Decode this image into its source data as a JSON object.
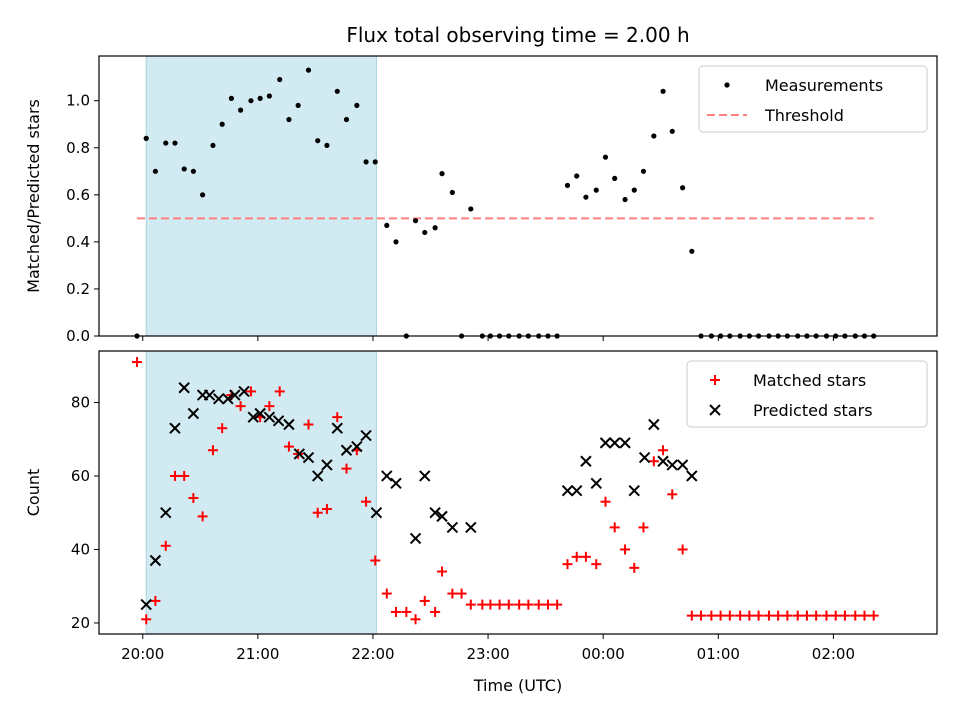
{
  "chart_data": {
    "title": "Flux total observing time = 2.00 h",
    "xlabel": "Time (UTC)",
    "x_unit": "hours after 20:00 UTC",
    "xlim": [
      -0.38,
      6.9
    ],
    "x_ticks": [
      {
        "value": 0,
        "label": "20:00"
      },
      {
        "value": 1,
        "label": "21:00"
      },
      {
        "value": 2,
        "label": "22:00"
      },
      {
        "value": 3,
        "label": "23:00"
      },
      {
        "value": 4,
        "label": "00:00"
      },
      {
        "value": 5,
        "label": "01:00"
      },
      {
        "value": 6,
        "label": "02:00"
      }
    ],
    "shaded_span": [
      0.03,
      2.03
    ],
    "shade_color": "#add8e6",
    "panels": [
      {
        "type": "scatter",
        "ylabel": "Matched/Predicted stars",
        "ylim": [
          0,
          1.19
        ],
        "y_ticks": [
          0,
          0.2,
          0.4,
          0.6,
          0.8,
          1.0
        ],
        "y_tick_labels": [
          "0.0",
          "0.2",
          "0.4",
          "0.6",
          "0.8",
          "1.0"
        ],
        "legend": {
          "placement": "top-right",
          "entries": [
            {
              "label": "Measurements",
              "marker": "dot",
              "color": "#000000"
            },
            {
              "label": "Threshold",
              "marker": "dashed-line",
              "color": "#ff8080"
            }
          ]
        },
        "threshold": {
          "y": 0.5,
          "x": [
            -0.05,
            6.35
          ],
          "color": "#ff8080"
        },
        "series": [
          {
            "name": "Measurements",
            "marker": "dot",
            "color": "#000000",
            "x": [
              -0.05,
              0.03,
              0.11,
              0.2,
              0.28,
              0.36,
              0.44,
              0.52,
              0.61,
              0.69,
              0.77,
              0.85,
              0.94,
              1.02,
              1.1,
              1.19,
              1.27,
              1.35,
              1.44,
              1.52,
              1.6,
              1.69,
              1.77,
              1.86,
              1.94,
              2.02,
              2.12,
              2.2,
              2.29,
              2.37,
              2.45,
              2.54,
              2.6,
              2.69,
              2.77,
              2.85,
              2.95,
              3.02,
              3.1,
              3.18,
              3.27,
              3.35,
              3.44,
              3.52,
              3.6,
              3.69,
              3.77,
              3.85,
              3.94,
              4.02,
              4.1,
              4.19,
              4.27,
              4.35,
              4.44,
              4.52,
              4.6,
              4.69,
              4.77,
              4.85,
              4.94,
              5.02,
              5.1,
              5.19,
              5.27,
              5.35,
              5.44,
              5.52,
              5.6,
              5.69,
              5.77,
              5.85,
              5.94,
              6.02,
              6.1,
              6.19,
              6.27,
              6.35
            ],
            "y": [
              0.0,
              0.84,
              0.7,
              0.82,
              0.82,
              0.71,
              0.7,
              0.6,
              0.81,
              0.9,
              1.01,
              0.96,
              1.0,
              1.01,
              1.02,
              1.09,
              0.92,
              0.98,
              1.13,
              0.83,
              0.81,
              1.04,
              0.92,
              0.98,
              0.74,
              0.74,
              0.47,
              0.4,
              0.0,
              0.49,
              0.44,
              0.46,
              0.69,
              0.61,
              0.0,
              0.54,
              0.0,
              0.0,
              0.0,
              0.0,
              0.0,
              0.0,
              0.0,
              0.0,
              0.0,
              0.64,
              0.68,
              0.59,
              0.62,
              0.76,
              0.67,
              0.58,
              0.62,
              0.7,
              0.85,
              1.04,
              0.87,
              0.63,
              0.36,
              0.0,
              0.0,
              0.0,
              0.0,
              0.0,
              0.0,
              0.0,
              0.0,
              0.0,
              0.0,
              0.0,
              0.0,
              0.0,
              0.0,
              0.0,
              0.0,
              0.0,
              0.0,
              0.0
            ]
          }
        ]
      },
      {
        "type": "scatter",
        "ylabel": "Count",
        "ylim": [
          17,
          94
        ],
        "y_ticks": [
          20,
          40,
          60,
          80
        ],
        "y_tick_labels": [
          "20",
          "40",
          "60",
          "80"
        ],
        "legend": {
          "placement": "top-right",
          "entries": [
            {
              "label": "Matched stars",
              "marker": "plus",
              "color": "#ff0000"
            },
            {
              "label": "Predicted stars",
              "marker": "x",
              "color": "#000000"
            }
          ]
        },
        "series": [
          {
            "name": "Matched stars",
            "marker": "plus",
            "color": "#ff0000",
            "x": [
              -0.05,
              0.03,
              0.11,
              0.2,
              0.28,
              0.36,
              0.44,
              0.52,
              0.61,
              0.69,
              0.77,
              0.85,
              0.94,
              1.02,
              1.1,
              1.19,
              1.27,
              1.35,
              1.44,
              1.52,
              1.6,
              1.69,
              1.77,
              1.86,
              1.94,
              2.02,
              2.12,
              2.2,
              2.29,
              2.37,
              2.45,
              2.54,
              2.6,
              2.69,
              2.77,
              2.85,
              2.95,
              3.02,
              3.1,
              3.18,
              3.27,
              3.35,
              3.44,
              3.52,
              3.6,
              3.69,
              3.77,
              3.85,
              3.94,
              4.02,
              4.1,
              4.19,
              4.27,
              4.35,
              4.44,
              4.52,
              4.6,
              4.69,
              4.77,
              4.85,
              4.94,
              5.02,
              5.1,
              5.19,
              5.27,
              5.35,
              5.44,
              5.52,
              5.6,
              5.69,
              5.77,
              5.85,
              5.94,
              6.02,
              6.1,
              6.19,
              6.27,
              6.35
            ],
            "y": [
              91,
              21,
              26,
              41,
              60,
              60,
              54,
              49,
              67,
              73,
              82,
              79,
              83,
              76,
              79,
              83,
              68,
              66,
              74,
              50,
              51,
              76,
              62,
              67,
              53,
              37,
              28,
              23,
              23,
              21,
              26,
              23,
              34,
              28,
              28,
              25,
              25,
              25,
              25,
              25,
              25,
              25,
              25,
              25,
              25,
              36,
              38,
              38,
              36,
              53,
              46,
              40,
              35,
              46,
              64,
              67,
              55,
              40,
              22,
              22,
              22,
              22,
              22,
              22,
              22,
              22,
              22,
              22,
              22,
              22,
              22,
              22,
              22,
              22,
              22,
              22,
              22,
              22
            ]
          },
          {
            "name": "Predicted stars",
            "marker": "x",
            "color": "#000000",
            "x": [
              0.03,
              0.11,
              0.2,
              0.28,
              0.36,
              0.44,
              0.52,
              0.58,
              0.66,
              0.74,
              0.8,
              0.88,
              0.96,
              1.02,
              1.1,
              1.18,
              1.27,
              1.36,
              1.44,
              1.52,
              1.6,
              1.69,
              1.77,
              1.86,
              1.94,
              2.03,
              2.12,
              2.2,
              2.37,
              2.45,
              2.54,
              2.6,
              2.69,
              2.85,
              3.69,
              3.77,
              3.85,
              3.94,
              4.02,
              4.1,
              4.19,
              4.27,
              4.36,
              4.44,
              4.52,
              4.6,
              4.69,
              4.77
            ],
            "y": [
              25,
              37,
              50,
              73,
              84,
              77,
              82,
              82,
              81,
              81,
              82,
              83,
              76,
              77,
              76,
              75,
              74,
              66,
              65,
              60,
              63,
              73,
              67,
              68,
              71,
              50,
              60,
              58,
              43,
              60,
              50,
              49,
              46,
              46,
              56,
              56,
              64,
              58,
              69,
              69,
              69,
              56,
              65,
              74,
              64,
              63,
              63,
              60
            ]
          }
        ]
      }
    ]
  }
}
